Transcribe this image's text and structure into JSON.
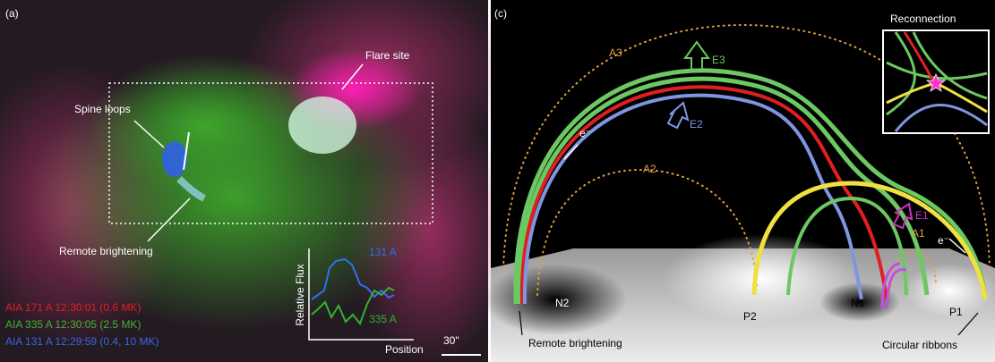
{
  "panel_a": {
    "label": "(a)",
    "annotations": {
      "flare_site": "Flare site",
      "spine_loops": "Spine loops",
      "remote_brightening": "Remote brightening"
    },
    "legend": [
      {
        "text": "AIA 171 A 12:30:01 (0.6 MK)",
        "color": "#e0201b"
      },
      {
        "text": "AIA 335 A 12:30:05 (2.5 MK)",
        "color": "#3fb52f"
      },
      {
        "text": "AIA 131 A 12:29:59 (0.4, 10 MK)",
        "color": "#3a66e0"
      }
    ],
    "inset": {
      "y_label": "Relative Flux",
      "x_label": "Position",
      "series": [
        {
          "name": "131 A",
          "color": "#2f6ff0"
        },
        {
          "name": "335 A",
          "color": "#2fb52f"
        }
      ]
    },
    "scale_bar": "30\""
  },
  "panel_c": {
    "label": "(c)",
    "inset_title": "Reconnection",
    "arcades": [
      "A3",
      "A2",
      "A1"
    ],
    "electrons": [
      "e⁻",
      "e⁻"
    ],
    "emissions": [
      "E3",
      "E2",
      "E1"
    ],
    "polarities": [
      "N2",
      "P2",
      "N1",
      "P1"
    ],
    "notes": {
      "remote_brightening": "Remote brightening",
      "circular_ribbons": "Circular ribbons"
    }
  }
}
